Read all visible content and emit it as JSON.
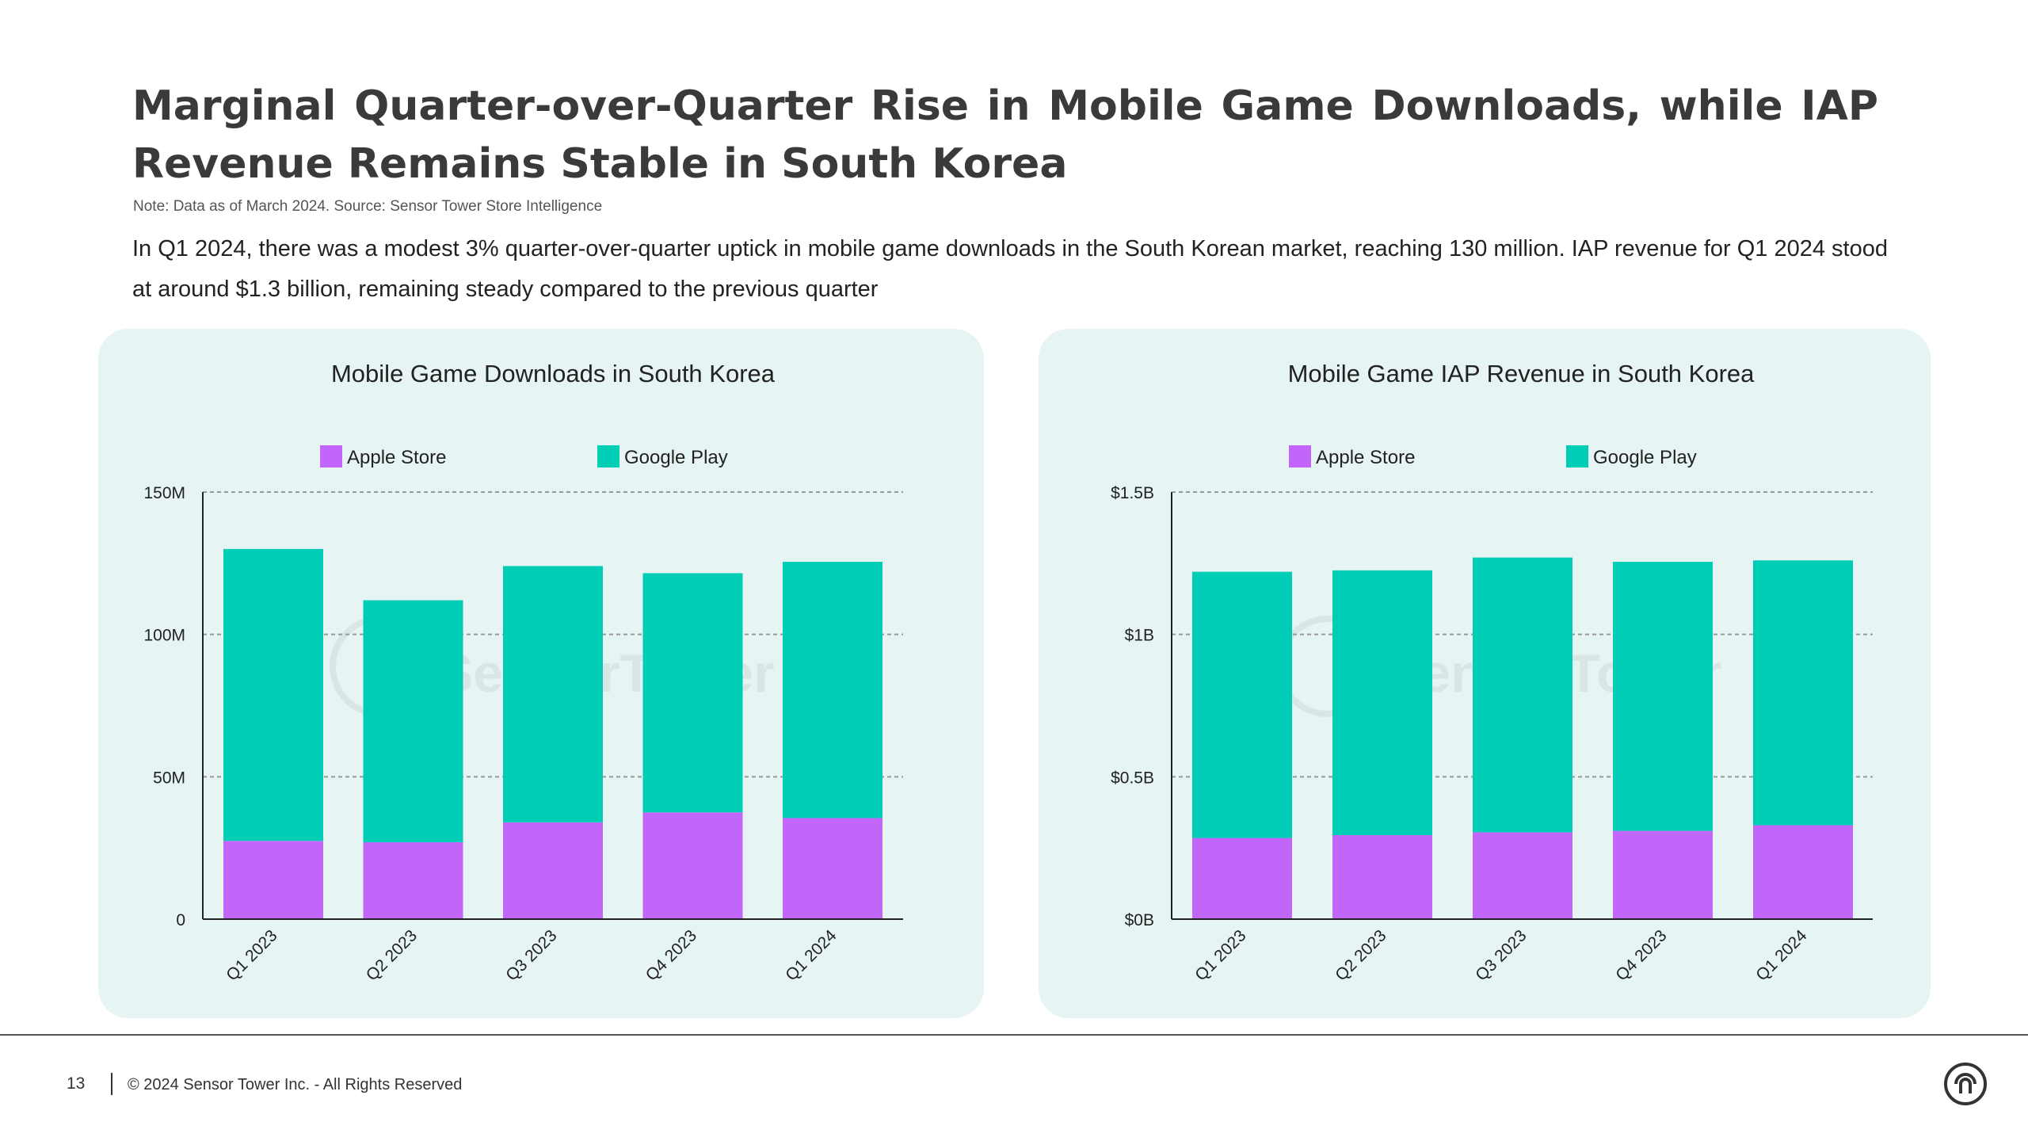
{
  "header": {
    "title": "Marginal Quarter-over-Quarter Rise in Mobile Game Downloads, while IAP Revenue Remains Stable in South Korea",
    "note": "Note: Data as of March 2024. Source: Sensor Tower Store Intelligence",
    "description": "In Q1 2024, there was a modest 3% quarter-over-quarter uptick in mobile game downloads in the South Korean market, reaching 130 million. IAP revenue for Q1 2024 stood at around $1.3 billion, remaining steady compared to the previous quarter"
  },
  "colors": {
    "apple": "#c266fa",
    "google": "#00cdb6",
    "panel_bg": "#e6f4f3",
    "grid": "#999999",
    "axis": "#222222"
  },
  "watermark": "SensorTower",
  "chart_data": [
    {
      "type": "bar",
      "stacked": true,
      "title": "Mobile Game Downloads in South Korea",
      "categories": [
        "Q1 2023",
        "Q2 2023",
        "Q3 2023",
        "Q4 2023",
        "Q1 2024"
      ],
      "series": [
        {
          "name": "Apple Store",
          "values": [
            27.5,
            27,
            34,
            37.5,
            35.5
          ]
        },
        {
          "name": "Google Play",
          "values": [
            102.5,
            85,
            90,
            84,
            90
          ]
        }
      ],
      "ylim": [
        0,
        150
      ],
      "yticks": [
        0,
        50,
        100,
        150
      ],
      "ytick_labels": [
        "0",
        "50M",
        "100M",
        "150M"
      ],
      "legend": "top-center",
      "grid": true
    },
    {
      "type": "bar",
      "stacked": true,
      "title": "Mobile Game IAP Revenue in South Korea",
      "categories": [
        "Q1 2023",
        "Q2 2023",
        "Q3 2023",
        "Q4 2023",
        "Q1 2024"
      ],
      "series": [
        {
          "name": "Apple Store",
          "values": [
            0.285,
            0.295,
            0.305,
            0.31,
            0.33
          ]
        },
        {
          "name": "Google Play",
          "values": [
            0.935,
            0.93,
            0.965,
            0.945,
            0.93
          ]
        }
      ],
      "ylim": [
        0,
        1.5
      ],
      "yticks": [
        0,
        0.5,
        1,
        1.5
      ],
      "ytick_labels": [
        "$0B",
        "$0.5B",
        "$1B",
        "$1.5B"
      ],
      "legend": "top-center",
      "grid": true
    }
  ],
  "footer": {
    "page_number": "13",
    "copyright": "© 2024 Sensor Tower Inc. - All Rights Reserved"
  }
}
